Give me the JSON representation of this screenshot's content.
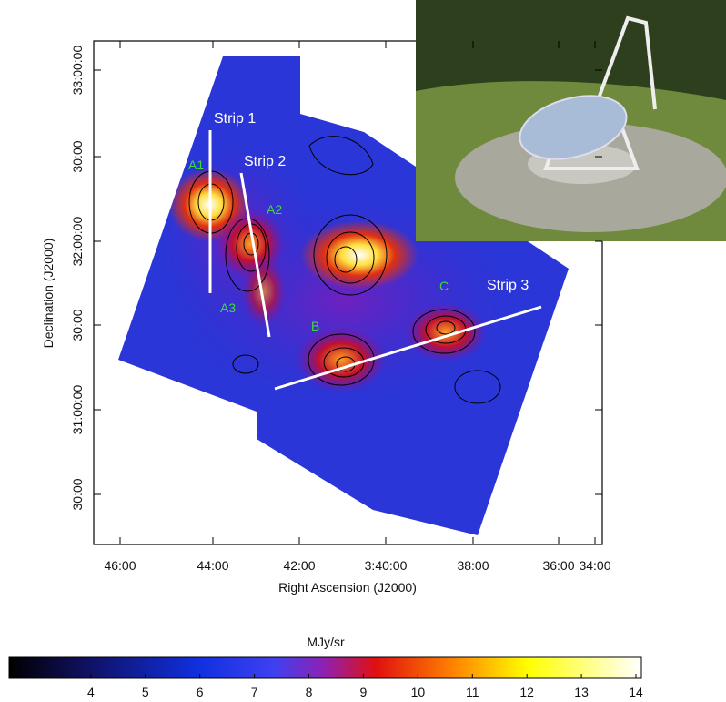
{
  "figure": {
    "x_axis": {
      "label": "Right Ascension (J2000)",
      "ticks": [
        "46:00",
        "44:00",
        "42:00",
        "3:40:00",
        "38:00",
        "36:00",
        "34:00"
      ]
    },
    "y_axis": {
      "label": "Declination (J2000)",
      "ticks": [
        "33:00:00",
        "30:00",
        "32:00:00",
        "30:00",
        "31:00:00",
        "30:00"
      ]
    },
    "strips": [
      "Strip 1",
      "Strip 2",
      "Strip 3"
    ],
    "regions": [
      "A1",
      "A2",
      "A3",
      "B",
      "C"
    ],
    "colorbar": {
      "label": "MJy/sr",
      "lim": [
        2.5,
        14.1
      ],
      "ticks": [
        4,
        5,
        6,
        7,
        8,
        9,
        10,
        11,
        12,
        13,
        14
      ]
    }
  }
}
